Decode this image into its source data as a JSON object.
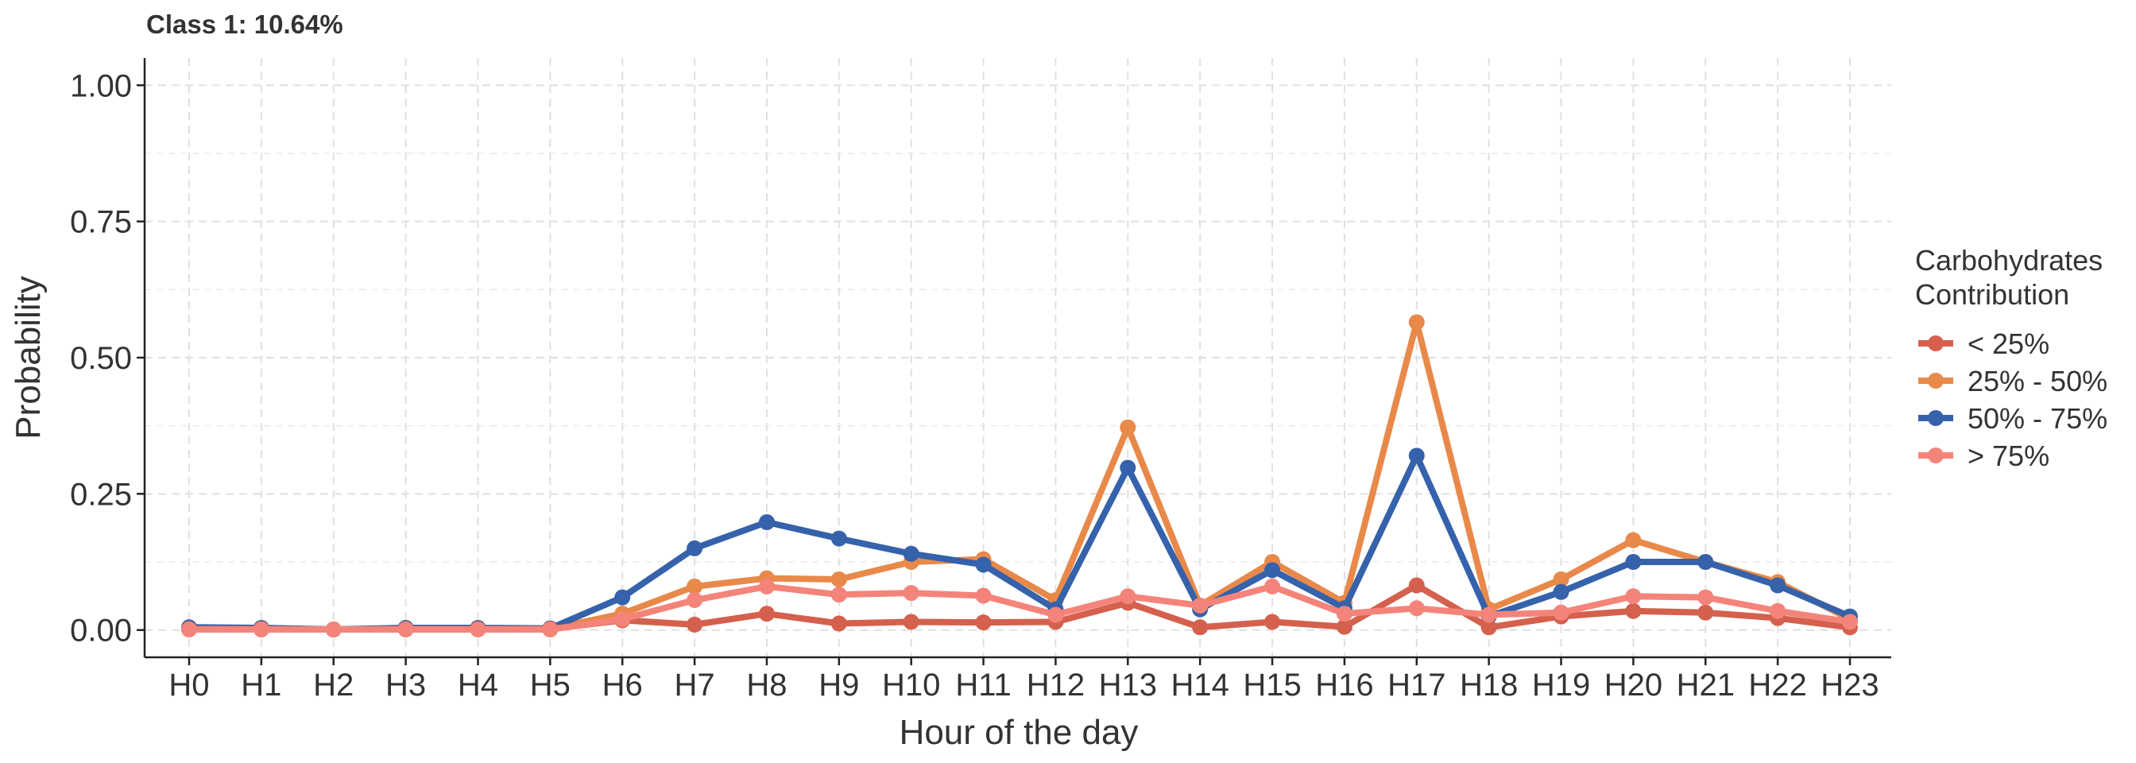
{
  "chart_data": {
    "type": "line",
    "title": "Class 1: 10.64%",
    "xlabel": "Hour of the day",
    "ylabel": "Probability",
    "ylim": [
      -0.05,
      1.05
    ],
    "yticks": [
      "0.00",
      "0.25",
      "0.50",
      "0.75",
      "1.00"
    ],
    "ytick_values": [
      0,
      0.25,
      0.5,
      0.75,
      1.0
    ],
    "categories": [
      "H0",
      "H1",
      "H2",
      "H3",
      "H4",
      "H5",
      "H6",
      "H7",
      "H8",
      "H9",
      "H10",
      "H11",
      "H12",
      "H13",
      "H14",
      "H15",
      "H16",
      "H17",
      "H18",
      "H19",
      "H20",
      "H21",
      "H22",
      "H23"
    ],
    "grid": true,
    "legend": {
      "title_lines": [
        "Carbohydrates",
        "Contribution"
      ],
      "placement": "right"
    },
    "series": [
      {
        "name": "< 25%",
        "color": "#D4604D",
        "values": [
          0.002,
          0.002,
          0.001,
          0.002,
          0.002,
          0.002,
          0.018,
          0.01,
          0.03,
          0.012,
          0.015,
          0.014,
          0.015,
          0.05,
          0.005,
          0.015,
          0.006,
          0.082,
          0.005,
          0.025,
          0.035,
          0.032,
          0.022,
          0.005
        ]
      },
      {
        "name": "25% - 50%",
        "color": "#E8894A",
        "values": [
          0.002,
          0.002,
          0.001,
          0.002,
          0.002,
          0.002,
          0.03,
          0.08,
          0.095,
          0.093,
          0.125,
          0.13,
          0.055,
          0.372,
          0.045,
          0.125,
          0.05,
          0.565,
          0.038,
          0.093,
          0.165,
          0.125,
          0.088,
          0.02
        ]
      },
      {
        "name": "50% - 75%",
        "color": "#3562AB",
        "values": [
          0.005,
          0.004,
          0.001,
          0.004,
          0.004,
          0.003,
          0.06,
          0.15,
          0.198,
          0.168,
          0.14,
          0.12,
          0.038,
          0.298,
          0.038,
          0.11,
          0.04,
          0.32,
          0.025,
          0.07,
          0.125,
          0.125,
          0.082,
          0.025
        ]
      },
      {
        "name": "> 75%",
        "color": "#F4847A",
        "values": [
          0.001,
          0.001,
          0.001,
          0.001,
          0.001,
          0.001,
          0.02,
          0.055,
          0.08,
          0.065,
          0.068,
          0.063,
          0.028,
          0.062,
          0.045,
          0.08,
          0.03,
          0.04,
          0.028,
          0.032,
          0.062,
          0.06,
          0.035,
          0.015
        ]
      }
    ]
  }
}
